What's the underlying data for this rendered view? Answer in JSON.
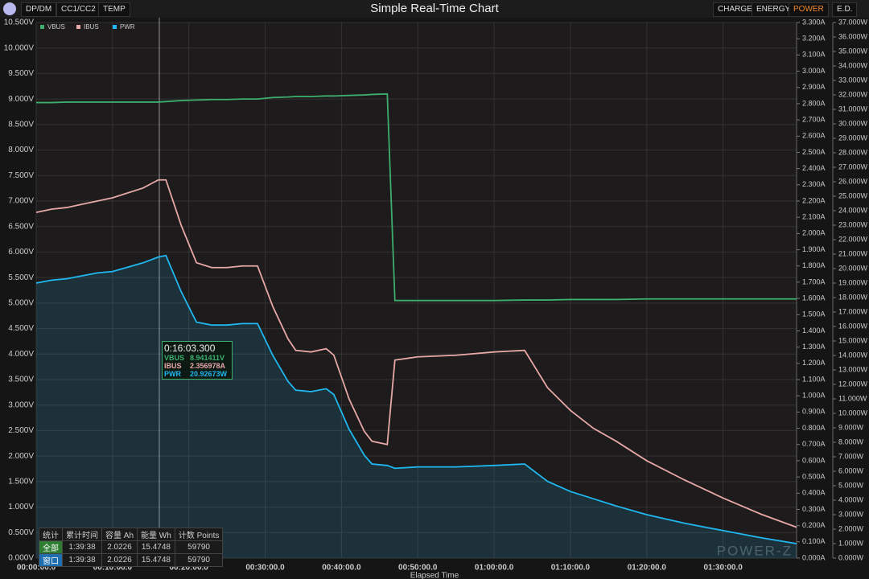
{
  "toolbar": {
    "left_tabs": [
      "DP/DM",
      "CC1/CC2",
      "TEMP"
    ],
    "right_tabs": [
      "CHARGE",
      "ENERGY",
      "POWER",
      "E.D."
    ],
    "active_tab": "POWER"
  },
  "chart_data": {
    "type": "line",
    "title": "Simple Real-Time Chart",
    "x_label": "Elapsed Time",
    "grid": true,
    "legend": "top-left",
    "x": [
      0,
      120,
      240,
      360,
      480,
      600,
      720,
      840,
      960,
      1020,
      1140,
      1260,
      1380,
      1500,
      1620,
      1740,
      1860,
      1980,
      2040,
      2160,
      2280,
      2340,
      2460,
      2580,
      2640,
      2760,
      2820,
      3000,
      3300,
      3600,
      3840,
      4020,
      4200,
      4380,
      4560,
      4800,
      5100,
      5400,
      5700,
      5978
    ],
    "xlim": [
      0,
      5978
    ],
    "xticks": [
      {
        "value": 0,
        "label": "00:00:00.0"
      },
      {
        "value": 600,
        "label": "00:10:00.0"
      },
      {
        "value": 1200,
        "label": "00:20:00.0"
      },
      {
        "value": 1800,
        "label": "00:30:00.0"
      },
      {
        "value": 2400,
        "label": "00:40:00.0"
      },
      {
        "value": 3000,
        "label": "00:50:00.0"
      },
      {
        "value": 3600,
        "label": "01:00:00.0"
      },
      {
        "value": 4200,
        "label": "01:10:00.0"
      },
      {
        "value": 4800,
        "label": "01:20:00.0"
      },
      {
        "value": 5400,
        "label": "01:30:00.0"
      }
    ],
    "ylim": [
      0,
      10.5
    ],
    "yticks": [
      {
        "value": 0,
        "label": "0.000V"
      },
      {
        "value": 0.5,
        "label": "0.500V"
      },
      {
        "value": 1,
        "label": "1.000V"
      },
      {
        "value": 1.5,
        "label": "1.500V"
      },
      {
        "value": 2,
        "label": "2.000V"
      },
      {
        "value": 2.5,
        "label": "2.500V"
      },
      {
        "value": 3,
        "label": "3.000V"
      },
      {
        "value": 3.5,
        "label": "3.500V"
      },
      {
        "value": 4,
        "label": "4.000V"
      },
      {
        "value": 4.5,
        "label": "4.500V"
      },
      {
        "value": 5,
        "label": "5.000V"
      },
      {
        "value": 5.5,
        "label": "5.500V"
      },
      {
        "value": 6,
        "label": "6.000V"
      },
      {
        "value": 6.5,
        "label": "6.500V"
      },
      {
        "value": 7,
        "label": "7.000V"
      },
      {
        "value": 7.5,
        "label": "7.500V"
      },
      {
        "value": 8,
        "label": "8.000V"
      },
      {
        "value": 8.5,
        "label": "8.500V"
      },
      {
        "value": 9,
        "label": "9.000V"
      },
      {
        "value": 9.5,
        "label": "9.500V"
      },
      {
        "value": 10,
        "label": "10.000V"
      },
      {
        "value": 10.5,
        "label": "10.500V"
      }
    ],
    "y2lim": [
      0,
      3.3
    ],
    "y2ticks": [
      {
        "value": 0,
        "label": "0.000A"
      },
      {
        "value": 0.1,
        "label": "0.100A"
      },
      {
        "value": 0.2,
        "label": "0.200A"
      },
      {
        "value": 0.3,
        "label": "0.300A"
      },
      {
        "value": 0.4,
        "label": "0.400A"
      },
      {
        "value": 0.5,
        "label": "0.500A"
      },
      {
        "value": 0.6,
        "label": "0.600A"
      },
      {
        "value": 0.7,
        "label": "0.700A"
      },
      {
        "value": 0.8,
        "label": "0.800A"
      },
      {
        "value": 0.9,
        "label": "0.900A"
      },
      {
        "value": 1,
        "label": "1.000A"
      },
      {
        "value": 1.1,
        "label": "1.100A"
      },
      {
        "value": 1.2,
        "label": "1.200A"
      },
      {
        "value": 1.3,
        "label": "1.300A"
      },
      {
        "value": 1.4,
        "label": "1.400A"
      },
      {
        "value": 1.5,
        "label": "1.500A"
      },
      {
        "value": 1.6,
        "label": "1.600A"
      },
      {
        "value": 1.7,
        "label": "1.700A"
      },
      {
        "value": 1.8,
        "label": "1.800A"
      },
      {
        "value": 1.9,
        "label": "1.900A"
      },
      {
        "value": 2,
        "label": "2.000A"
      },
      {
        "value": 2.1,
        "label": "2.100A"
      },
      {
        "value": 2.2,
        "label": "2.200A"
      },
      {
        "value": 2.3,
        "label": "2.300A"
      },
      {
        "value": 2.4,
        "label": "2.400A"
      },
      {
        "value": 2.5,
        "label": "2.500A"
      },
      {
        "value": 2.6,
        "label": "2.600A"
      },
      {
        "value": 2.7,
        "label": "2.700A"
      },
      {
        "value": 2.8,
        "label": "2.800A"
      },
      {
        "value": 2.9,
        "label": "2.900A"
      },
      {
        "value": 3,
        "label": "3.000A"
      },
      {
        "value": 3.1,
        "label": "3.100A"
      },
      {
        "value": 3.2,
        "label": "3.200A"
      },
      {
        "value": 3.3,
        "label": "3.300A"
      }
    ],
    "y3lim": [
      0,
      37
    ],
    "y3ticks": [
      {
        "value": 0,
        "label": "0.000W"
      },
      {
        "value": 1,
        "label": "1.000W"
      },
      {
        "value": 2,
        "label": "2.000W"
      },
      {
        "value": 3,
        "label": "3.000W"
      },
      {
        "value": 4,
        "label": "4.000W"
      },
      {
        "value": 5,
        "label": "5.000W"
      },
      {
        "value": 6,
        "label": "6.000W"
      },
      {
        "value": 7,
        "label": "7.000W"
      },
      {
        "value": 8,
        "label": "8.000W"
      },
      {
        "value": 9,
        "label": "9.000W"
      },
      {
        "value": 10,
        "label": "10.000W"
      },
      {
        "value": 11,
        "label": "11.000W"
      },
      {
        "value": 12,
        "label": "12.000W"
      },
      {
        "value": 13,
        "label": "13.000W"
      },
      {
        "value": 14,
        "label": "14.000W"
      },
      {
        "value": 15,
        "label": "15.000W"
      },
      {
        "value": 16,
        "label": "16.000W"
      },
      {
        "value": 17,
        "label": "17.000W"
      },
      {
        "value": 18,
        "label": "18.000W"
      },
      {
        "value": 19,
        "label": "19.000W"
      },
      {
        "value": 20,
        "label": "20.000W"
      },
      {
        "value": 21,
        "label": "21.000W"
      },
      {
        "value": 22,
        "label": "22.000W"
      },
      {
        "value": 23,
        "label": "23.000W"
      },
      {
        "value": 24,
        "label": "24.000W"
      },
      {
        "value": 25,
        "label": "25.000W"
      },
      {
        "value": 26,
        "label": "26.000W"
      },
      {
        "value": 27,
        "label": "27.000W"
      },
      {
        "value": 28,
        "label": "28.000W"
      },
      {
        "value": 29,
        "label": "29.000W"
      },
      {
        "value": 30,
        "label": "30.000W"
      },
      {
        "value": 31,
        "label": "31.000W"
      },
      {
        "value": 32,
        "label": "32.000W"
      },
      {
        "value": 33,
        "label": "33.000W"
      },
      {
        "value": 34,
        "label": "34.000W"
      },
      {
        "value": 35,
        "label": "35.000W"
      },
      {
        "value": 36,
        "label": "36.000W"
      },
      {
        "value": 37,
        "label": "37.000W"
      }
    ],
    "series": [
      {
        "name": "VBUS",
        "color": "#3dae6e",
        "axis": "y",
        "values": [
          8.93,
          8.93,
          8.94,
          8.94,
          8.94,
          8.94,
          8.94,
          8.94,
          8.94,
          8.95,
          8.97,
          8.98,
          8.99,
          8.99,
          9.0,
          9.0,
          9.03,
          9.04,
          9.05,
          9.05,
          9.06,
          9.06,
          9.07,
          9.08,
          9.09,
          9.1,
          5.05,
          5.05,
          5.05,
          5.05,
          5.06,
          5.06,
          5.07,
          5.07,
          5.07,
          5.08,
          5.08,
          5.08,
          5.08,
          5.08
        ]
      },
      {
        "name": "IBUS",
        "color": "#e8a8a8",
        "axis": "y2",
        "values": [
          2.13,
          2.15,
          2.16,
          2.18,
          2.2,
          2.22,
          2.25,
          2.28,
          2.33,
          2.33,
          2.05,
          1.82,
          1.79,
          1.79,
          1.8,
          1.8,
          1.55,
          1.35,
          1.28,
          1.27,
          1.29,
          1.25,
          0.98,
          0.78,
          0.72,
          0.7,
          1.22,
          1.24,
          1.25,
          1.27,
          1.28,
          1.05,
          0.91,
          0.8,
          0.72,
          0.6,
          0.48,
          0.37,
          0.27,
          0.19
        ]
      },
      {
        "name": "PWR",
        "color": "#1fb8f0",
        "axis": "y3",
        "area": true,
        "values": [
          19.0,
          19.2,
          19.3,
          19.5,
          19.7,
          19.8,
          20.1,
          20.4,
          20.8,
          20.9,
          18.4,
          16.3,
          16.1,
          16.1,
          16.2,
          16.2,
          14.0,
          12.2,
          11.6,
          11.5,
          11.7,
          11.3,
          8.9,
          7.1,
          6.5,
          6.4,
          6.2,
          6.3,
          6.3,
          6.4,
          6.5,
          5.3,
          4.6,
          4.1,
          3.6,
          3.0,
          2.4,
          1.9,
          1.4,
          1.0
        ]
      }
    ],
    "tooltip": {
      "time": "0:16:03.300",
      "rows": [
        [
          "VBUS",
          "8.941411V"
        ],
        [
          "IBUS",
          "2.356978A"
        ],
        [
          "PWR",
          "20.92673W"
        ]
      ]
    }
  },
  "stats": {
    "headers": [
      "统计",
      "累计时间",
      "容量 Ah",
      "能量 Wh",
      "计数 Points"
    ],
    "rows": [
      [
        "全部",
        "1:39:38",
        2.0226,
        15.4748,
        59790
      ],
      [
        "窗口",
        "1:39:38",
        2.0226,
        15.4748,
        59790
      ]
    ]
  },
  "watermark": "POWER-Z"
}
